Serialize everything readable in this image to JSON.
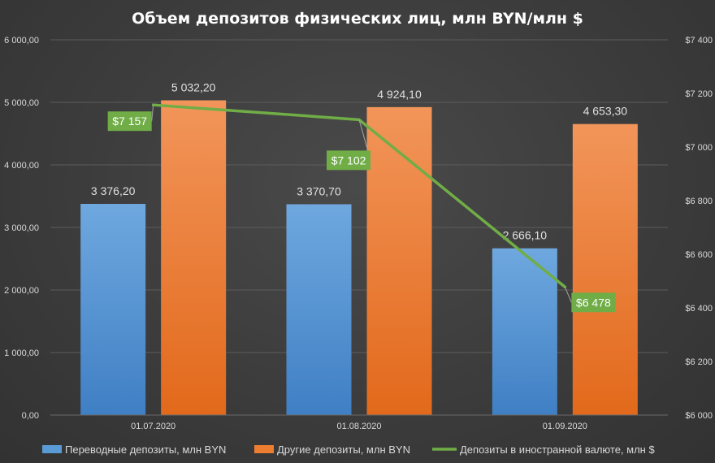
{
  "chart_data": {
    "type": "bar",
    "title": "Объем депозитов физических лиц, млн BYN/млн $",
    "categories": [
      "01.07.2020",
      "01.08.2020",
      "01.09.2020"
    ],
    "series": [
      {
        "name": "Переводные депозиты, млн BYN",
        "kind": "bar",
        "axis": "left",
        "values": [
          3376.2,
          3370.7,
          2666.1
        ],
        "labels": [
          "3 376,20",
          "3 370,70",
          "2 666,10"
        ],
        "color": "#5b9bd5"
      },
      {
        "name": "Другие депозиты, млн BYN",
        "kind": "bar",
        "axis": "left",
        "values": [
          5032.2,
          4924.1,
          4653.3
        ],
        "labels": [
          "5 032,20",
          "4 924,10",
          "4 653,30"
        ],
        "color": "#ed7d31"
      },
      {
        "name": "Депозиты в иностранной валюте, млн $",
        "kind": "line",
        "axis": "right",
        "values": [
          7157,
          7102,
          6478
        ],
        "labels": [
          "$7 157",
          "$7 102",
          "$6 478"
        ],
        "color": "#70ad47"
      }
    ],
    "y_left": {
      "min": 0,
      "max": 6000,
      "step": 1000,
      "tick_labels": [
        "0,00",
        "1 000,00",
        "2 000,00",
        "3 000,00",
        "4 000,00",
        "5 000,00",
        "6 000,00"
      ]
    },
    "y_right": {
      "min": 6000,
      "max": 7400,
      "step": 200,
      "tick_labels": [
        "$6 000",
        "$6 200",
        "$6 400",
        "$6 600",
        "$6 800",
        "$7 000",
        "$7 200",
        "$7 400"
      ]
    },
    "grid": true,
    "legend_position": "bottom"
  }
}
